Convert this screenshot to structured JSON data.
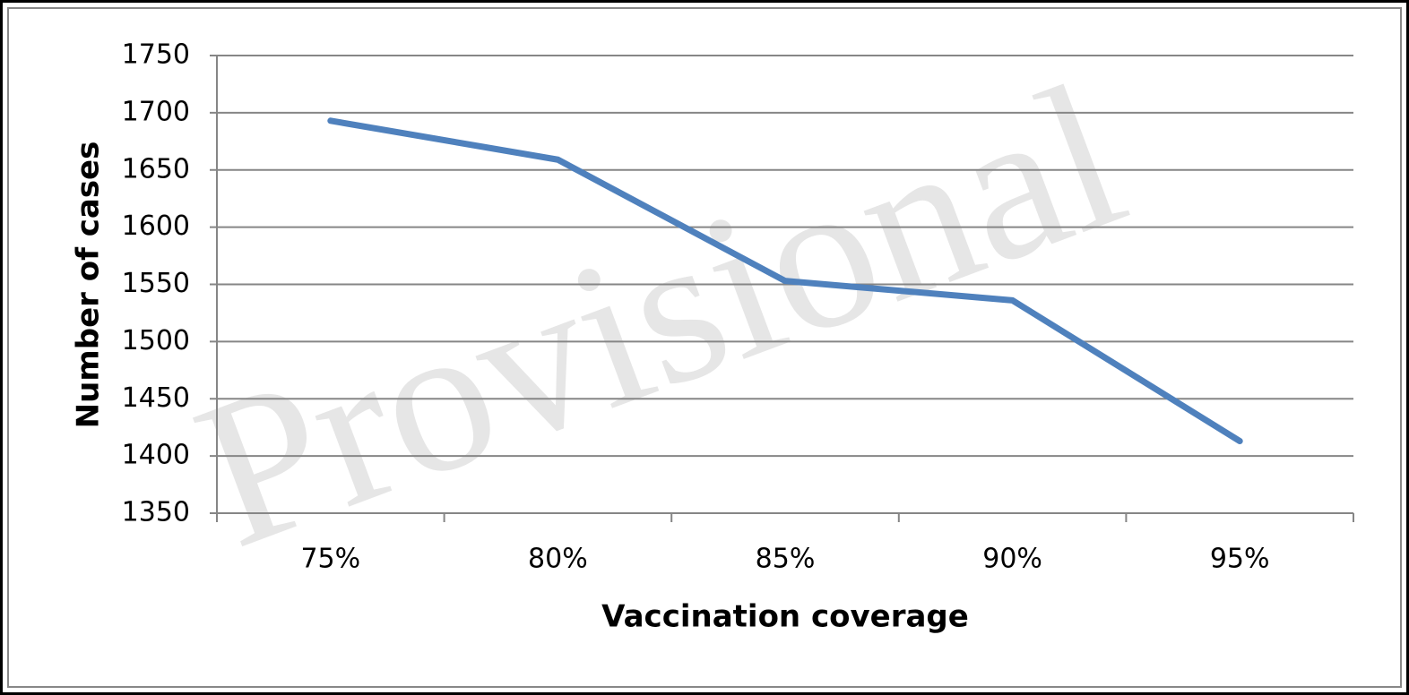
{
  "chart_data": {
    "type": "line",
    "watermark": "Provisional",
    "x_label": "Vaccination coverage",
    "y_label": "Number of cases",
    "categories": [
      "75%",
      "80%",
      "85%",
      "90%",
      "95%"
    ],
    "values": [
      1693,
      1659,
      1553,
      1536,
      1413
    ],
    "color": "#4f81bd",
    "ylim": [
      1350,
      1750
    ],
    "yticks": [
      1350,
      1400,
      1450,
      1500,
      1550,
      1600,
      1650,
      1700,
      1750
    ],
    "grid": true
  }
}
